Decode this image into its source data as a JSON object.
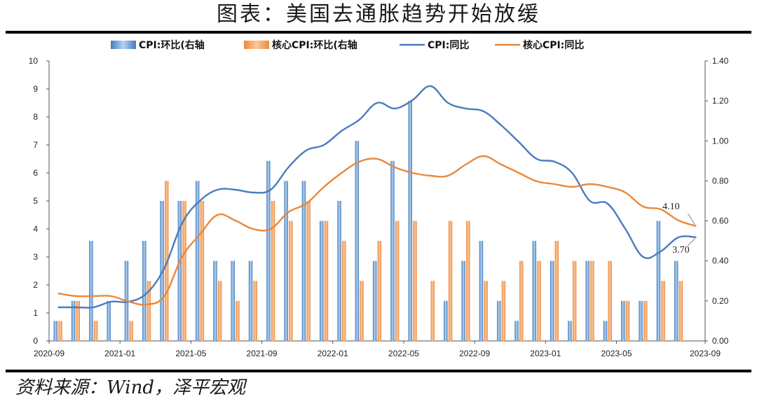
{
  "header": {
    "title": "图表：美国去通胀趋势开始放缓"
  },
  "footer": {
    "source": "资料来源：Wind，泽平宏观"
  },
  "colors": {
    "cpi_mom_bar": "#3f7dbf",
    "core_mom_bar": "#ee8a3e",
    "cpi_yoy_line": "#4a7bbf",
    "core_yoy_line": "#e9883b"
  },
  "chart_data": {
    "type": "bar+line",
    "legend_position": "top",
    "grid": false,
    "x_start": "2020-09",
    "x_end": "2023-09",
    "x_tick_labels": [
      "2020-09",
      "2021-01",
      "2021-05",
      "2021-09",
      "2022-01",
      "2022-05",
      "2022-09",
      "2023-01",
      "2023-05",
      "2023-09"
    ],
    "y_left": {
      "range": [
        0,
        10
      ],
      "tick_labels": [
        "0",
        "1",
        "2",
        "3",
        "4",
        "5",
        "6",
        "7",
        "8",
        "9",
        "10"
      ]
    },
    "y_right": {
      "range": [
        0,
        1.4
      ],
      "tick_labels": [
        "0.00",
        "0.20",
        "0.40",
        "0.60",
        "0.80",
        "1.00",
        "1.20",
        "1.40"
      ]
    },
    "months": [
      "2020-09",
      "2020-10",
      "2020-11",
      "2020-12",
      "2021-01",
      "2021-02",
      "2021-03",
      "2021-04",
      "2021-05",
      "2021-06",
      "2021-07",
      "2021-08",
      "2021-09",
      "2021-10",
      "2021-11",
      "2021-12",
      "2022-01",
      "2022-02",
      "2022-03",
      "2022-04",
      "2022-05",
      "2022-06",
      "2022-07",
      "2022-08",
      "2022-09",
      "2022-10",
      "2022-11",
      "2022-12",
      "2023-01",
      "2023-02",
      "2023-03",
      "2023-04",
      "2023-05",
      "2023-06",
      "2023-07",
      "2023-08",
      "2023-09"
    ],
    "series": [
      {
        "name": "CPI:环比(右轴",
        "kind": "bar",
        "axis": "right",
        "values": [
          0.1,
          0.2,
          0.5,
          0.2,
          0.4,
          0.5,
          0.7,
          0.7,
          0.8,
          0.4,
          0.4,
          0.4,
          0.9,
          0.8,
          0.8,
          0.6,
          0.7,
          1.0,
          0.4,
          0.9,
          1.2,
          0.0,
          0.2,
          0.4,
          0.5,
          0.2,
          0.1,
          0.5,
          0.4,
          0.1,
          0.4,
          0.1,
          0.2,
          0.2,
          0.6,
          0.4,
          null
        ]
      },
      {
        "name": "核心CPI:环比(右轴",
        "kind": "bar",
        "axis": "right",
        "values": [
          0.1,
          0.2,
          0.1,
          0.0,
          0.1,
          0.3,
          0.8,
          0.7,
          0.7,
          0.3,
          0.2,
          0.3,
          0.7,
          0.6,
          0.7,
          0.6,
          0.5,
          0.3,
          0.5,
          0.6,
          0.6,
          0.3,
          0.6,
          0.6,
          0.3,
          0.3,
          0.4,
          0.4,
          0.5,
          0.4,
          0.4,
          0.4,
          0.2,
          0.2,
          0.3,
          0.3,
          null
        ]
      },
      {
        "name": "CPI:同比",
        "kind": "line",
        "axis": "left",
        "values": [
          1.2,
          1.2,
          1.2,
          1.4,
          1.4,
          1.7,
          2.6,
          4.2,
          5.0,
          5.4,
          5.4,
          5.3,
          5.4,
          6.2,
          6.8,
          7.0,
          7.5,
          7.9,
          8.5,
          8.3,
          8.6,
          9.1,
          8.5,
          8.3,
          8.2,
          7.7,
          7.1,
          6.5,
          6.4,
          6.0,
          5.0,
          4.9,
          4.0,
          3.0,
          3.2,
          3.7,
          3.7
        ]
      },
      {
        "name": "核心CPI:同比",
        "kind": "line",
        "axis": "left",
        "values": [
          1.7,
          1.6,
          1.6,
          1.6,
          1.4,
          1.3,
          1.6,
          3.0,
          3.8,
          4.5,
          4.3,
          4.0,
          4.0,
          4.6,
          4.9,
          5.5,
          6.0,
          6.4,
          6.5,
          6.2,
          6.0,
          5.9,
          5.9,
          6.3,
          6.6,
          6.3,
          6.0,
          5.7,
          5.6,
          5.5,
          5.6,
          5.5,
          5.3,
          4.8,
          4.7,
          4.3,
          4.1
        ]
      }
    ],
    "annotations": [
      {
        "text": "4.10",
        "month": "2023-09",
        "series": "核心CPI:同比",
        "value": 4.1
      },
      {
        "text": "3.70",
        "month": "2023-09",
        "series": "CPI:同比",
        "value": 3.7
      }
    ]
  }
}
